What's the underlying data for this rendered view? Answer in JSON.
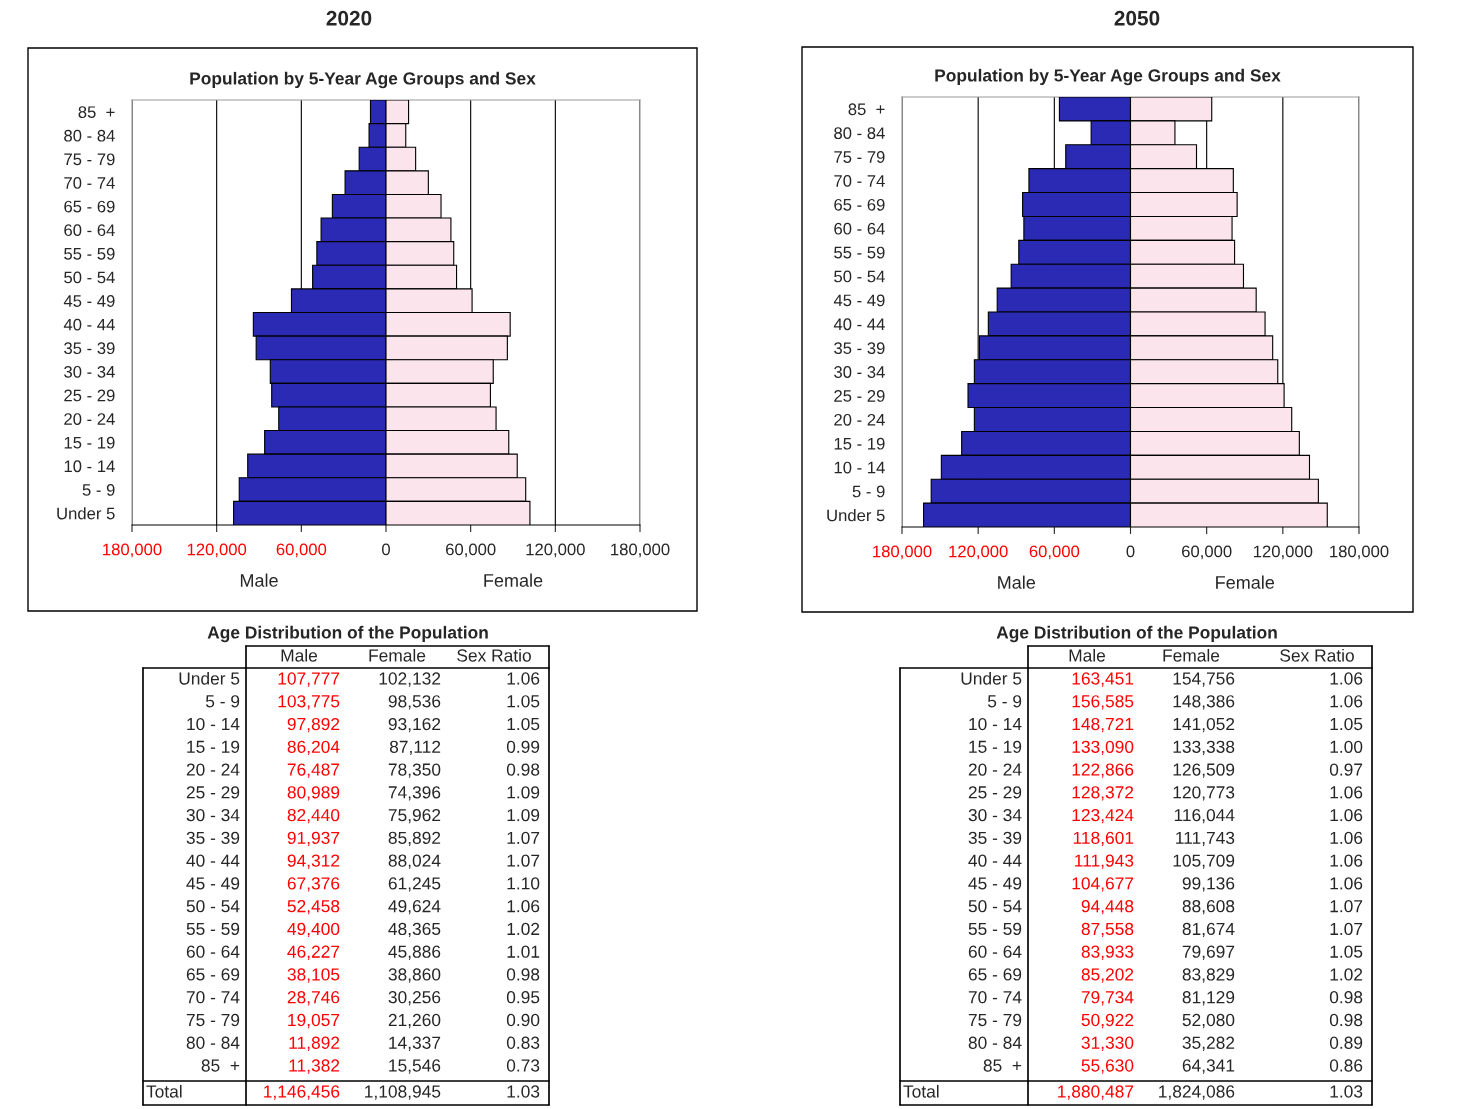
{
  "chart_data": [
    {
      "type": "bar",
      "orientation": "horizontal",
      "stacked": true,
      "title": "2020",
      "subtitle": "Population by 5-Year Age Groups and Sex",
      "categories": [
        "85  +",
        "80 - 84",
        "75 - 79",
        "70 - 74",
        "65 - 69",
        "60 - 64",
        "55 - 59",
        "50 - 54",
        "45 - 49",
        "40 - 44",
        "35 - 39",
        "30 - 34",
        "25 - 29",
        "20 - 24",
        "15 - 19",
        "10 - 14",
        "5 - 9",
        "Under 5"
      ],
      "series": [
        {
          "name": "Male",
          "color": "#2a2ab4",
          "values": [
            -11000,
            -12000,
            -19000,
            -29000,
            -38000,
            -46000,
            -49000,
            -52000,
            -67000,
            -94000,
            -92000,
            -82000,
            -81000,
            -76000,
            -86000,
            -98000,
            -104000,
            -108000
          ]
        },
        {
          "name": "Female",
          "color": "#fbe4ec",
          "values": [
            16000,
            14000,
            21000,
            30000,
            39000,
            46000,
            48000,
            50000,
            61000,
            88000,
            86000,
            76000,
            74000,
            78000,
            87000,
            93000,
            99000,
            102000
          ]
        }
      ],
      "xlim": [
        -180000,
        180000
      ],
      "xticks": [
        {
          "value": -180000,
          "label": "180,000"
        },
        {
          "value": -120000,
          "label": "120,000"
        },
        {
          "value": -60000,
          "label": "60,000"
        },
        0,
        {
          "value": 60000,
          "label": "60,000"
        },
        {
          "value": 120000,
          "label": "120,000"
        },
        {
          "value": 180000,
          "label": "180,000"
        }
      ],
      "grid": "x",
      "legend": false
    },
    {
      "type": "bar",
      "orientation": "horizontal",
      "stacked": true,
      "title": "2050",
      "subtitle": "Population by 5-Year Age Groups and Sex",
      "categories": [
        "85  +",
        "80 - 84",
        "75 - 79",
        "70 - 74",
        "65 - 69",
        "60 - 64",
        "55 - 59",
        "50 - 54",
        "45 - 49",
        "40 - 44",
        "35 - 39",
        "30 - 34",
        "25 - 29",
        "20 - 24",
        "15 - 19",
        "10 - 14",
        "5 - 9",
        "Under 5"
      ],
      "series": [
        {
          "name": "Male",
          "color": "#2a2ab4",
          "values": [
            -56000,
            -31000,
            -51000,
            -80000,
            -85000,
            -84000,
            -88000,
            -94000,
            -105000,
            -112000,
            -119000,
            -123000,
            -128000,
            -123000,
            -133000,
            -149000,
            -157000,
            -163000
          ]
        },
        {
          "name": "Female",
          "color": "#fbe4ec",
          "values": [
            64000,
            35000,
            52000,
            81000,
            84000,
            80000,
            82000,
            89000,
            99000,
            106000,
            112000,
            116000,
            121000,
            127000,
            133000,
            141000,
            148000,
            155000
          ]
        }
      ],
      "xlim": [
        -180000,
        180000
      ],
      "xticks": [
        {
          "value": -180000,
          "label": "180,000"
        },
        {
          "value": -120000,
          "label": "120,000"
        },
        {
          "value": -60000,
          "label": "60,000"
        },
        0,
        {
          "value": 60000,
          "label": "60,000"
        },
        {
          "value": 120000,
          "label": "120,000"
        },
        {
          "value": 180000,
          "label": "180,000"
        }
      ],
      "grid": "x",
      "legend": false
    },
    {
      "type": "other",
      "title": "Age Distribution of the Population",
      "annotations": [
        "Male",
        "Female",
        "Sex Ratio",
        "Under 5",
        "107,777",
        "102,132",
        "1.06",
        "5 - 9",
        "103,775",
        "98,536",
        "1.05",
        "10 - 14",
        "97,892",
        "93,162",
        "1.05",
        "15 - 19",
        "86,204",
        "87,112",
        "0.99",
        "20 - 24",
        "76,487",
        "78,350",
        "0.98",
        "25 - 29",
        "80,989",
        "74,396",
        "1.09",
        "30 - 34",
        "82,440",
        "75,962",
        "1.09",
        "35 - 39",
        "91,937",
        "85,892",
        "1.07",
        "40 - 44",
        "94,312",
        "88,024",
        "1.07",
        "45 - 49",
        "67,376",
        "61,245",
        "1.10",
        "50 - 54",
        "52,458",
        "49,624",
        "1.06",
        "55 - 59",
        "49,400",
        "48,365",
        "1.02",
        "60 - 64",
        "46,227",
        "45,886",
        "1.01",
        "65 - 69",
        "38,105",
        "38,860",
        "0.98",
        "70 - 74",
        "28,746",
        "30,256",
        "0.95",
        "75 - 79",
        "19,057",
        "21,260",
        "0.90",
        "80 - 84",
        "11,892",
        "14,337",
        "0.83",
        "85  +",
        "11,382",
        "15,546",
        "0.73",
        "Total",
        "1,146,456",
        "1,108,945",
        "1.03"
      ]
    },
    {
      "type": "other",
      "title": "Age Distribution of the Population",
      "annotations": [
        "Male",
        "Female",
        "Sex Ratio",
        "Under 5",
        "163,451",
        "154,756",
        "1.06",
        "5 - 9",
        "156,585",
        "148,386",
        "1.06",
        "10 - 14",
        "148,721",
        "141,052",
        "1.05",
        "15 - 19",
        "133,090",
        "133,338",
        "1.00",
        "20 - 24",
        "122,866",
        "126,509",
        "0.97",
        "25 - 29",
        "128,372",
        "120,773",
        "1.06",
        "30 - 34",
        "123,424",
        "116,044",
        "1.06",
        "35 - 39",
        "118,601",
        "111,743",
        "1.06",
        "40 - 44",
        "111,943",
        "105,709",
        "1.06",
        "45 - 49",
        "104,677",
        "99,136",
        "1.06",
        "50 - 54",
        "94,448",
        "88,608",
        "1.07",
        "55 - 59",
        "87,558",
        "81,674",
        "1.07",
        "60 - 64",
        "83,933",
        "79,697",
        "1.05",
        "65 - 69",
        "85,202",
        "83,829",
        "1.02",
        "70 - 74",
        "79,734",
        "81,129",
        "0.98",
        "75 - 79",
        "50,922",
        "52,080",
        "0.98",
        "80 - 84",
        "31,330",
        "35,282",
        "0.89",
        "85  +",
        "55,630",
        "64,341",
        "0.86",
        "Total",
        "1,880,487",
        "1,824,086",
        "1.03"
      ]
    }
  ]
}
